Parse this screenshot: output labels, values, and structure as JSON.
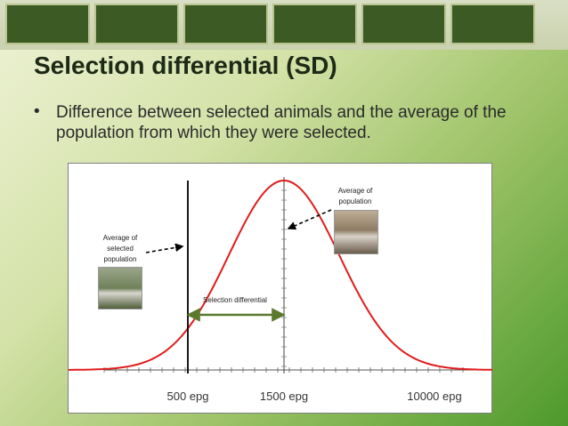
{
  "slide": {
    "title": "Selection differential (SD)",
    "bullet_marker": "•",
    "bullet": "Difference between selected animals and the average of the population from which they were selected."
  },
  "colors": {
    "curve": "#e01c1c",
    "arrow": "#5c7a2e",
    "line": "#000000"
  },
  "banner": {
    "icon": "dna-helix-icon"
  },
  "figure": {
    "labels": {
      "population_average": [
        "Average of",
        "population"
      ],
      "selected_average": [
        "Average of",
        "selected",
        "population"
      ],
      "selection_differential": "Selection differential"
    },
    "photos": {
      "population": "goat-herd-photo",
      "selected": "selected-goat-photo"
    }
  },
  "chart_data": {
    "type": "line",
    "title": "",
    "xlabel": "",
    "ylabel": "",
    "series": [
      {
        "shape": "normal",
        "mean_tick": "1500 epg"
      }
    ],
    "x_ticks": [
      {
        "label": "500 epg"
      },
      {
        "label": "1500 epg"
      },
      {
        "label": "10000 epg"
      }
    ],
    "markers": {
      "selected_average": "500 epg",
      "population_average": "1500 epg"
    },
    "grid": false,
    "legend": "none"
  }
}
